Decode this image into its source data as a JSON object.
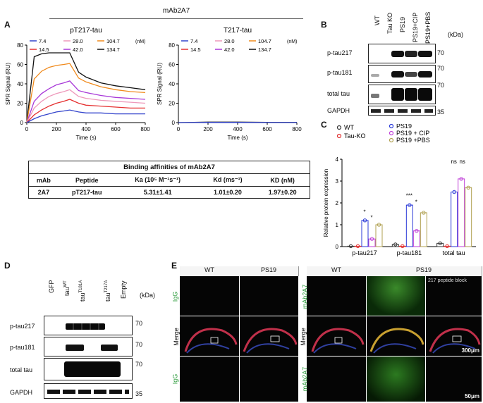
{
  "panel_letters": {
    "a": "A",
    "b": "B",
    "c": "C",
    "d": "D",
    "e": "E"
  },
  "panelA": {
    "header": "mAb2A7",
    "left_title": "pT217-tau",
    "right_title": "T217-tau",
    "ylabel": "SPR Signal (RU)",
    "xlabel": "Time (s)",
    "legend_unit": "(nM)",
    "concentrations": [
      "7.4",
      "28.0",
      "104.7",
      "14.5",
      "42.0",
      "134.7"
    ],
    "concentration_colors": [
      "#3344cc",
      "#ee99bb",
      "#f08a1c",
      "#e53030",
      "#a838d8",
      "#111111"
    ],
    "table_title": "Binding affinities of mAb2A7",
    "table_headers": [
      "mAb",
      "Peptide",
      "Ka (10⁵ M⁻¹s⁻¹)",
      "Kd (ms⁻¹)",
      "KD (nM)"
    ],
    "table_row": [
      "2A7",
      "pT217-tau",
      "5.31±1.41",
      "1.01±0.20",
      "1.97±0.20"
    ]
  },
  "chart_data": [
    {
      "type": "line",
      "title": "pT217-tau",
      "xlabel": "Time (s)",
      "ylabel": "SPR Signal (RU)",
      "xlim": [
        0,
        800
      ],
      "ylim": [
        0,
        80
      ],
      "x_ticks": [
        "0",
        "200",
        "400",
        "600",
        "800"
      ],
      "y_ticks": [
        "0",
        "20",
        "40",
        "60",
        "80"
      ],
      "x": [
        0,
        50,
        100,
        150,
        200,
        250,
        290,
        350,
        400,
        500,
        600,
        700,
        800
      ],
      "series": [
        {
          "name": "134.7",
          "values": [
            0,
            68,
            71,
            72,
            72,
            72,
            72,
            52,
            47,
            41,
            38,
            36,
            34
          ]
        },
        {
          "name": "104.7",
          "values": [
            0,
            45,
            53,
            57,
            59,
            60,
            61,
            46,
            42,
            37,
            34,
            32,
            31
          ]
        },
        {
          "name": "42.0",
          "values": [
            0,
            22,
            30,
            35,
            39,
            41,
            43,
            33,
            31,
            28,
            26,
            25,
            24
          ]
        },
        {
          "name": "28.0",
          "values": [
            0,
            15,
            22,
            27,
            30,
            32,
            34,
            27,
            25,
            23,
            22,
            21,
            20
          ]
        },
        {
          "name": "14.5",
          "values": [
            0,
            8,
            13,
            17,
            20,
            22,
            24,
            20,
            18,
            17,
            16,
            15,
            15
          ]
        },
        {
          "name": "7.4",
          "values": [
            0,
            4,
            7,
            9,
            11,
            12,
            13,
            11,
            10,
            10,
            9,
            9,
            9
          ]
        }
      ]
    },
    {
      "type": "line",
      "title": "T217-tau",
      "xlabel": "Time (s)",
      "ylabel": "SPR Signal (RU)",
      "xlim": [
        0,
        800
      ],
      "ylim": [
        0,
        80
      ],
      "x_ticks": [
        "0",
        "200",
        "400",
        "600",
        "800"
      ],
      "y_ticks": [
        "0",
        "20",
        "40",
        "60",
        "80"
      ],
      "x": [
        0,
        200,
        400,
        600,
        800
      ],
      "series": [
        {
          "name": "134.7",
          "values": [
            0,
            0.5,
            0.5,
            0.3,
            0.2
          ]
        },
        {
          "name": "7.4",
          "values": [
            0,
            0.2,
            0.2,
            0.1,
            0.1
          ]
        }
      ]
    },
    {
      "type": "bar",
      "ylabel": "Relative protein expression",
      "ylim": [
        0,
        4
      ],
      "y_ticks": [
        "0",
        "1",
        "2",
        "3",
        "4"
      ],
      "categories": [
        "p-tau217",
        "p-tau181",
        "total tau"
      ],
      "series": [
        {
          "name": "WT",
          "values": [
            0.02,
            0.1,
            0.15
          ]
        },
        {
          "name": "Tau-KO",
          "values": [
            0.02,
            0.02,
            0.02
          ]
        },
        {
          "name": "PS19",
          "values": [
            1.2,
            1.9,
            2.5
          ]
        },
        {
          "name": "PS19 + CIP",
          "values": [
            0.35,
            0.72,
            3.1
          ]
        },
        {
          "name": "PS19 +PBS",
          "values": [
            1.0,
            1.55,
            2.7
          ]
        }
      ],
      "series_colors": [
        "#333333",
        "#e03030",
        "#2a3ad8",
        "#c040d8",
        "#b0a050"
      ],
      "significance": [
        "*",
        "*",
        "***",
        "*",
        "ns",
        "ns"
      ]
    }
  ],
  "panelB": {
    "lanes": [
      "WT",
      "Tau KO",
      "PS19",
      "PS19+CIP",
      "PS19+PBS"
    ],
    "unit": "(kDa)",
    "rows": [
      {
        "label": "p-tau217",
        "mw": "70"
      },
      {
        "label": "p-tau181",
        "mw": "70"
      },
      {
        "label": "total tau",
        "mw": "70"
      },
      {
        "label": "GAPDH",
        "mw": "35"
      }
    ]
  },
  "panelC": {
    "legend": [
      "WT",
      "Tau-KO",
      "PS19",
      "PS19 + CIP",
      "PS19 +PBS"
    ]
  },
  "panelD": {
    "lanes": [
      "GFP",
      "tau",
      "tau",
      "tau",
      "Empty"
    ],
    "lane_sups": [
      "",
      "WT",
      "T181A",
      "T217A",
      ""
    ],
    "unit": "(kDa)",
    "rows": [
      {
        "label": "p-tau217",
        "mw": "70"
      },
      {
        "label": "p-tau181",
        "mw": "70"
      },
      {
        "label": "total tau",
        "mw": "70"
      },
      {
        "label": "GAPDH",
        "mw": "35"
      }
    ]
  },
  "panelE": {
    "left_cols": [
      "WT",
      "PS19"
    ],
    "right_cols": [
      "WT",
      "PS19"
    ],
    "left_rows": [
      "IgG",
      "Merge",
      "IgG"
    ],
    "right_rows": [
      "mAb2A7",
      "Merge",
      "mAb2A7"
    ],
    "block_label": "217 peptide block",
    "scale1": "300μm",
    "scale2": "50μm"
  }
}
